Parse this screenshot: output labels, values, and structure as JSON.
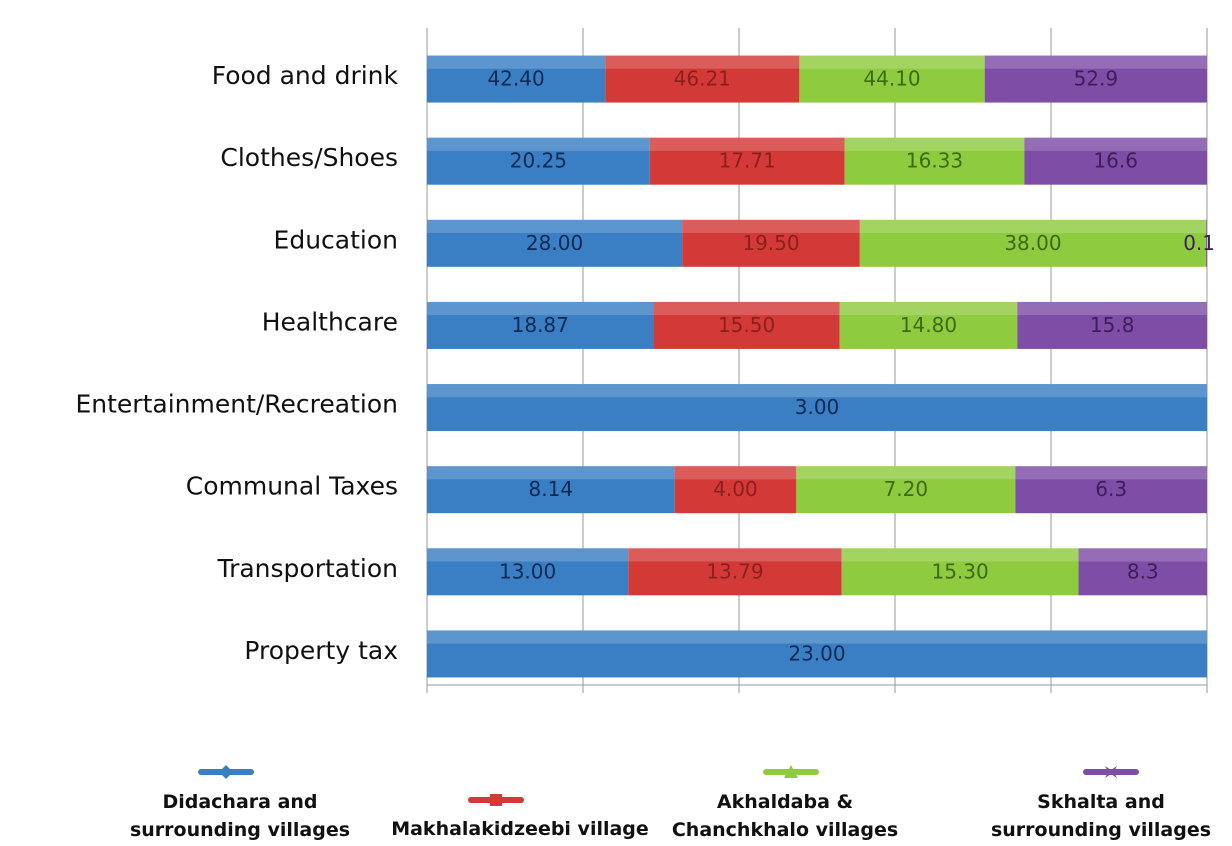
{
  "chart_data": {
    "type": "bar",
    "orientation": "horizontal",
    "stacked": true,
    "normalized": true,
    "title": "",
    "xlabel": "",
    "ylabel": "",
    "grid": true,
    "legend_position": "bottom",
    "categories": [
      "Food and drink",
      "Clothes/Shoes",
      "Education",
      "Healthcare",
      "Entertainment/Recreation",
      "Communal Taxes",
      "Transportation",
      "Property tax"
    ],
    "series": [
      {
        "name": "Didachara and surrounding villages",
        "color": "#3a7fc4",
        "text_color": "#0d2a55",
        "values": [
          42.4,
          20.25,
          28.0,
          18.87,
          3.0,
          8.14,
          13.0,
          23.0
        ],
        "labels": [
          "42.40",
          "20.25",
          "28.00",
          "18.87",
          "3.00",
          "8.14",
          "13.00",
          "23.00"
        ]
      },
      {
        "name": "Makhalakidzeebi village",
        "color": "#d33a37",
        "text_color": "#8c1f1d",
        "values": [
          46.21,
          17.71,
          19.5,
          15.5,
          null,
          4.0,
          13.79,
          null
        ],
        "labels": [
          "46.21",
          "17.71",
          "19.50",
          "15.50",
          "",
          "4.00",
          "13.79",
          ""
        ]
      },
      {
        "name": "Akhaldaba & Chanchkhalo villages",
        "color": "#8fcb3f",
        "text_color": "#3f6a14",
        "values": [
          44.1,
          16.33,
          38.0,
          14.8,
          null,
          7.2,
          15.3,
          null
        ],
        "labels": [
          "44.10",
          "16.33",
          "38.00",
          "14.80",
          "",
          "7.20",
          "15.30",
          ""
        ]
      },
      {
        "name": "Skhalta and surrounding villages",
        "color": "#7e4ea6",
        "text_color": "#3e1d5a",
        "values": [
          52.9,
          16.6,
          0.1,
          15.8,
          null,
          6.3,
          8.3,
          null
        ],
        "labels": [
          "52.9",
          "16.6",
          "0.1",
          "15.8",
          "",
          "6.3",
          "8.3",
          ""
        ]
      }
    ]
  }
}
